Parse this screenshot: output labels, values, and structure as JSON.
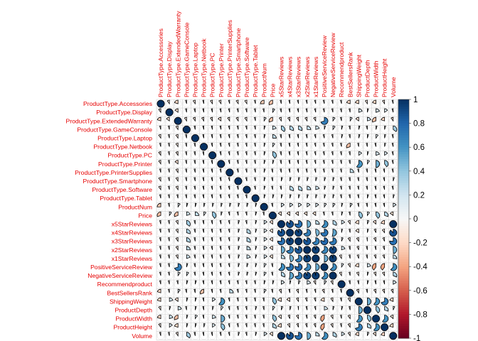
{
  "chart_data": {
    "type": "heatmap",
    "style": "corrplot-pie",
    "variables": [
      "ProductType.Accessories",
      "ProductType.Display",
      "ProductType.ExtendedWarranty",
      "ProductType.GameConsole",
      "ProductType.Laptop",
      "ProductType.Netbook",
      "ProductType.PC",
      "ProductType.Printer",
      "ProductType.PrinterSupplies",
      "ProductType.Smartphone",
      "ProductType.Software",
      "ProductType.Tablet",
      "ProductNum",
      "Price",
      "x5StarReviews",
      "x4StarReviews",
      "x3StarReviews",
      "x2StarReviews",
      "x1StarReviews",
      "PositiveServiceReview",
      "NegativeServiceReview",
      "Recommendproduct",
      "BestSellersRank",
      "ShippingWeight",
      "ProductDepth",
      "ProductWidth",
      "ProductHeight",
      "Volume"
    ],
    "correlations": [
      [
        1.0,
        -0.1,
        -0.2,
        -0.05,
        -0.1,
        -0.05,
        -0.1,
        -0.1,
        -0.05,
        -0.1,
        -0.1,
        -0.05,
        -0.25,
        -0.3,
        -0.05,
        -0.05,
        -0.05,
        -0.05,
        -0.05,
        -0.05,
        -0.05,
        -0.05,
        -0.2,
        -0.2,
        -0.1,
        -0.2,
        -0.1,
        -0.05
      ],
      [
        -0.1,
        1.0,
        -0.15,
        -0.05,
        -0.05,
        -0.05,
        -0.05,
        -0.05,
        -0.05,
        -0.05,
        -0.05,
        -0.05,
        -0.05,
        0.1,
        -0.05,
        -0.05,
        -0.05,
        -0.05,
        -0.05,
        -0.05,
        -0.05,
        -0.05,
        -0.05,
        0.2,
        0.05,
        0.2,
        0.15,
        -0.05
      ],
      [
        -0.2,
        -0.15,
        1.0,
        -0.1,
        -0.1,
        -0.1,
        -0.1,
        -0.15,
        -0.1,
        -0.1,
        -0.1,
        -0.05,
        0.1,
        -0.3,
        -0.1,
        -0.1,
        -0.1,
        -0.1,
        -0.1,
        0.7,
        0.1,
        -0.05,
        0.1,
        -0.15,
        0.2,
        -0.3,
        -0.2,
        -0.1
      ],
      [
        -0.05,
        -0.05,
        -0.1,
        1.0,
        -0.05,
        -0.05,
        -0.05,
        -0.05,
        -0.05,
        -0.05,
        -0.05,
        -0.05,
        0.05,
        0.2,
        0.35,
        0.3,
        0.3,
        0.25,
        0.2,
        0.05,
        0.1,
        0.05,
        -0.05,
        0.05,
        -0.05,
        0.05,
        0.05,
        0.35
      ],
      [
        -0.1,
        -0.05,
        -0.1,
        -0.05,
        1.0,
        -0.05,
        -0.05,
        -0.05,
        -0.05,
        -0.05,
        -0.05,
        -0.05,
        0.05,
        0.25,
        -0.05,
        -0.05,
        -0.05,
        -0.05,
        -0.05,
        -0.05,
        -0.05,
        0.05,
        -0.05,
        0.05,
        0.05,
        0.1,
        0.05,
        -0.05
      ],
      [
        -0.05,
        -0.05,
        -0.1,
        -0.05,
        -0.05,
        1.0,
        -0.05,
        -0.05,
        -0.05,
        -0.05,
        -0.05,
        -0.05,
        0.05,
        0.1,
        -0.05,
        -0.05,
        -0.05,
        -0.05,
        -0.05,
        -0.05,
        -0.05,
        -0.05,
        -0.3,
        -0.05,
        -0.05,
        -0.05,
        0.05,
        -0.05
      ],
      [
        -0.1,
        -0.05,
        -0.1,
        -0.05,
        -0.05,
        -0.05,
        1.0,
        -0.05,
        -0.05,
        -0.05,
        -0.05,
        -0.05,
        0.05,
        0.4,
        -0.05,
        -0.05,
        -0.05,
        -0.05,
        -0.05,
        -0.05,
        -0.05,
        -0.05,
        -0.05,
        0.15,
        0.05,
        0.2,
        0.15,
        -0.05
      ],
      [
        -0.1,
        -0.05,
        -0.15,
        -0.05,
        -0.05,
        -0.05,
        -0.05,
        1.0,
        -0.05,
        -0.05,
        -0.05,
        -0.05,
        0.05,
        0.05,
        -0.05,
        -0.05,
        -0.05,
        -0.05,
        -0.05,
        -0.05,
        -0.05,
        -0.05,
        -0.05,
        0.6,
        0.1,
        0.5,
        0.4,
        -0.05
      ],
      [
        -0.05,
        -0.05,
        -0.1,
        -0.05,
        -0.05,
        -0.05,
        -0.05,
        -0.05,
        1.0,
        -0.05,
        -0.05,
        -0.05,
        0.05,
        -0.05,
        -0.05,
        -0.05,
        -0.05,
        -0.05,
        -0.05,
        -0.05,
        -0.05,
        -0.05,
        0.25,
        -0.05,
        -0.05,
        -0.05,
        -0.05,
        -0.05
      ],
      [
        -0.1,
        -0.05,
        -0.1,
        -0.05,
        -0.05,
        -0.05,
        -0.05,
        -0.05,
        -0.05,
        1.0,
        -0.05,
        -0.05,
        0.05,
        -0.05,
        0.05,
        0.05,
        0.05,
        0.05,
        0.05,
        0.05,
        0.05,
        -0.05,
        -0.05,
        -0.05,
        -0.05,
        -0.05,
        -0.05,
        0.05
      ],
      [
        -0.1,
        -0.05,
        -0.1,
        -0.05,
        -0.05,
        -0.05,
        -0.05,
        -0.05,
        -0.05,
        -0.05,
        1.0,
        -0.05,
        0.05,
        -0.05,
        -0.05,
        0.3,
        0.3,
        0.25,
        0.2,
        0.05,
        0.05,
        -0.05,
        -0.05,
        -0.05,
        -0.05,
        -0.05,
        -0.05,
        -0.05
      ],
      [
        -0.05,
        -0.05,
        -0.05,
        -0.05,
        -0.05,
        -0.05,
        -0.05,
        -0.05,
        -0.05,
        -0.05,
        -0.05,
        1.0,
        0.05,
        0.05,
        0.05,
        0.05,
        0.05,
        0.05,
        0.05,
        0.05,
        0.05,
        -0.05,
        -0.05,
        -0.05,
        0.05,
        -0.05,
        -0.05,
        0.05
      ],
      [
        -0.25,
        -0.05,
        0.1,
        0.05,
        0.05,
        0.05,
        0.05,
        0.05,
        0.05,
        0.05,
        0.05,
        0.05,
        1.0,
        -0.05,
        0.15,
        0.15,
        0.15,
        0.15,
        0.15,
        0.1,
        0.1,
        0.05,
        0.1,
        -0.05,
        -0.05,
        -0.05,
        -0.05,
        0.15
      ],
      [
        -0.3,
        0.1,
        -0.3,
        0.2,
        0.25,
        0.1,
        0.4,
        0.05,
        -0.05,
        -0.05,
        -0.05,
        0.05,
        -0.05,
        1.0,
        -0.15,
        -0.15,
        -0.15,
        -0.15,
        -0.15,
        -0.05,
        -0.05,
        0.05,
        -0.05,
        0.4,
        0.1,
        0.4,
        0.3,
        -0.15
      ],
      [
        -0.05,
        -0.05,
        -0.1,
        0.35,
        -0.05,
        -0.05,
        -0.05,
        -0.05,
        -0.05,
        0.05,
        -0.05,
        0.05,
        0.15,
        -0.15,
        1.0,
        0.88,
        0.76,
        0.49,
        0.26,
        0.62,
        0.31,
        0.17,
        -0.1,
        -0.19,
        0.07,
        -0.14,
        -0.21,
        1.0
      ],
      [
        -0.05,
        -0.05,
        -0.1,
        0.3,
        -0.05,
        -0.05,
        -0.05,
        -0.05,
        -0.05,
        0.05,
        0.3,
        0.05,
        0.15,
        -0.15,
        0.88,
        1.0,
        0.94,
        0.7,
        0.46,
        0.74,
        0.53,
        0.04,
        -0.05,
        -0.16,
        0.05,
        -0.08,
        -0.11,
        0.88
      ],
      [
        -0.05,
        -0.05,
        -0.1,
        0.3,
        -0.05,
        -0.05,
        -0.05,
        -0.05,
        -0.05,
        0.05,
        0.3,
        0.05,
        0.15,
        -0.15,
        0.76,
        0.94,
        1.0,
        0.86,
        0.68,
        0.79,
        0.71,
        0.07,
        -0.1,
        -0.1,
        -0.02,
        -0.1,
        -0.08,
        0.76
      ],
      [
        -0.05,
        -0.05,
        -0.1,
        0.25,
        -0.05,
        -0.05,
        -0.05,
        -0.05,
        -0.05,
        0.05,
        0.25,
        0.05,
        0.15,
        -0.15,
        0.49,
        0.7,
        0.86,
        1.0,
        0.95,
        0.65,
        0.93,
        0.2,
        -0.05,
        -0.08,
        -0.05,
        -0.05,
        -0.07,
        0.49
      ],
      [
        -0.05,
        -0.05,
        -0.1,
        0.2,
        -0.05,
        -0.05,
        -0.05,
        -0.05,
        -0.05,
        0.05,
        0.2,
        0.05,
        0.15,
        -0.15,
        0.26,
        0.46,
        0.68,
        0.95,
        1.0,
        0.5,
        0.96,
        -0.1,
        -0.05,
        -0.07,
        -0.05,
        -0.08,
        -0.08,
        0.26
      ],
      [
        -0.05,
        -0.05,
        0.7,
        0.05,
        -0.05,
        -0.05,
        -0.05,
        -0.05,
        -0.05,
        0.05,
        0.05,
        0.05,
        0.1,
        -0.05,
        0.62,
        0.74,
        0.79,
        0.65,
        0.5,
        1.0,
        0.63,
        0.1,
        -0.1,
        -0.2,
        0.2,
        -0.4,
        -0.4,
        0.62
      ],
      [
        -0.05,
        -0.05,
        0.1,
        0.1,
        -0.05,
        -0.05,
        -0.05,
        -0.05,
        -0.05,
        0.05,
        0.05,
        0.05,
        0.1,
        -0.05,
        0.31,
        0.53,
        0.71,
        0.93,
        0.96,
        0.63,
        1.0,
        -0.1,
        -0.05,
        -0.1,
        0.05,
        -0.1,
        -0.1,
        0.31
      ],
      [
        -0.05,
        -0.05,
        -0.05,
        0.05,
        0.05,
        -0.05,
        -0.05,
        -0.05,
        -0.05,
        -0.05,
        -0.05,
        -0.05,
        0.05,
        0.05,
        0.17,
        0.04,
        0.07,
        0.2,
        -0.1,
        0.1,
        -0.1,
        1.0,
        -0.05,
        -0.05,
        0.05,
        -0.05,
        -0.05,
        0.17
      ],
      [
        -0.2,
        -0.05,
        0.1,
        -0.05,
        -0.05,
        -0.3,
        -0.05,
        -0.05,
        0.25,
        -0.05,
        -0.05,
        -0.05,
        0.1,
        -0.05,
        -0.1,
        -0.05,
        -0.1,
        -0.05,
        -0.05,
        -0.1,
        -0.05,
        -0.05,
        1.0,
        -0.1,
        -0.05,
        -0.1,
        -0.1,
        -0.1
      ],
      [
        -0.2,
        0.2,
        -0.15,
        0.05,
        0.05,
        -0.05,
        0.15,
        0.6,
        -0.05,
        -0.05,
        -0.05,
        -0.05,
        -0.05,
        0.4,
        -0.19,
        -0.16,
        -0.1,
        -0.08,
        -0.07,
        -0.2,
        -0.1,
        -0.05,
        -0.1,
        1.0,
        0.5,
        0.6,
        0.7,
        -0.19
      ],
      [
        -0.1,
        0.05,
        0.2,
        -0.05,
        0.05,
        -0.05,
        0.05,
        0.1,
        -0.05,
        -0.05,
        -0.05,
        0.05,
        -0.05,
        0.1,
        0.07,
        0.05,
        -0.02,
        -0.05,
        -0.05,
        0.2,
        0.05,
        0.05,
        -0.05,
        0.5,
        1.0,
        0.4,
        0.3,
        0.07
      ],
      [
        -0.2,
        0.2,
        -0.3,
        0.05,
        0.1,
        -0.05,
        0.2,
        0.5,
        -0.05,
        -0.05,
        -0.05,
        -0.05,
        -0.05,
        0.4,
        -0.14,
        -0.08,
        -0.1,
        -0.05,
        -0.08,
        -0.4,
        -0.1,
        -0.05,
        -0.1,
        0.6,
        0.4,
        1.0,
        0.6,
        -0.14
      ],
      [
        -0.1,
        0.15,
        -0.2,
        0.05,
        0.05,
        0.05,
        0.15,
        0.4,
        -0.05,
        -0.05,
        -0.05,
        -0.05,
        -0.05,
        0.3,
        -0.21,
        -0.11,
        -0.08,
        -0.07,
        -0.08,
        -0.4,
        -0.1,
        -0.05,
        -0.1,
        0.7,
        0.3,
        0.6,
        1.0,
        -0.21
      ],
      [
        -0.05,
        -0.05,
        -0.1,
        0.35,
        -0.05,
        -0.05,
        -0.05,
        -0.05,
        -0.05,
        0.05,
        -0.05,
        0.05,
        0.15,
        -0.15,
        1.0,
        0.88,
        0.76,
        0.49,
        0.26,
        0.62,
        0.31,
        0.17,
        -0.1,
        -0.19,
        0.07,
        -0.14,
        -0.21,
        1.0
      ]
    ],
    "colorbar": {
      "ticks": [
        "1",
        "0.8",
        "0.6",
        "0.4",
        "0.2",
        "0",
        "-0.2",
        "-0.4",
        "-0.6",
        "-0.8",
        "-1"
      ],
      "range": [
        -1,
        1
      ],
      "colors": {
        "negative": "#67001F",
        "neutral": "#F7F7F7",
        "positive": "#053061"
      }
    },
    "label_color": "#E60000"
  }
}
